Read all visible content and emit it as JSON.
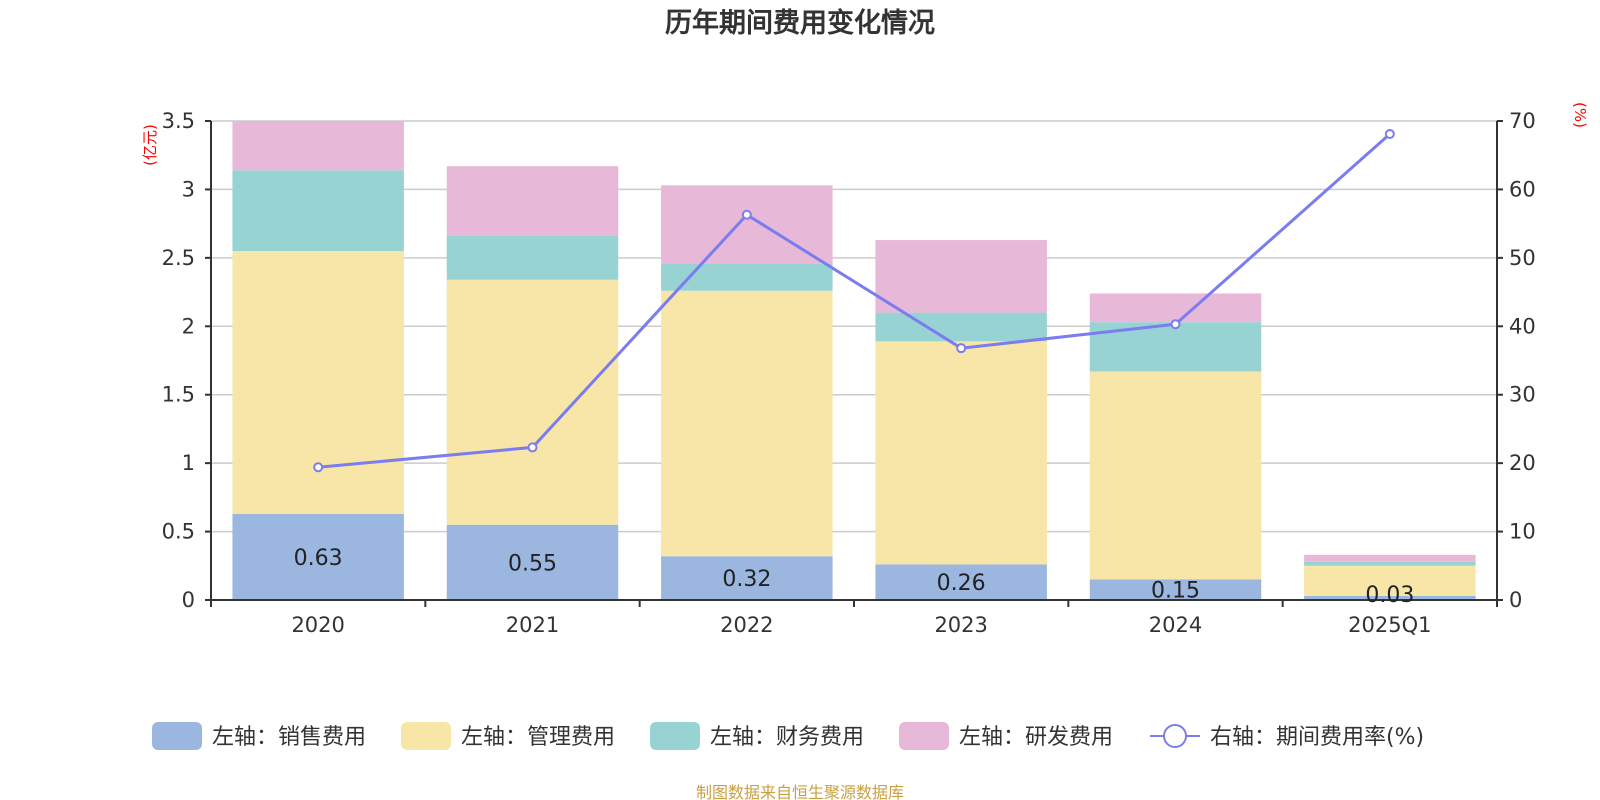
{
  "chart_data": {
    "type": "bar",
    "stacked": true,
    "title": "历年期间费用变化情况",
    "categories": [
      "2020",
      "2021",
      "2022",
      "2023",
      "2024",
      "2025Q1"
    ],
    "series": [
      {
        "name": "左轴：销售费用",
        "axis": "left",
        "type": "bar",
        "color": "#9bb7e0",
        "values": [
          0.63,
          0.55,
          0.32,
          0.26,
          0.15,
          0.03
        ],
        "show_labels": true
      },
      {
        "name": "左轴：管理费用",
        "axis": "left",
        "type": "bar",
        "color": "#f7e6a8",
        "values": [
          1.92,
          1.79,
          1.94,
          1.63,
          1.52,
          0.22
        ]
      },
      {
        "name": "左轴：财务费用",
        "axis": "left",
        "type": "bar",
        "color": "#98d3d4",
        "values": [
          0.59,
          0.32,
          0.2,
          0.21,
          0.36,
          0.03
        ]
      },
      {
        "name": "左轴：研发费用",
        "axis": "left",
        "type": "bar",
        "color": "#e7b8d8",
        "values": [
          0.36,
          0.51,
          0.57,
          0.53,
          0.21,
          0.05
        ]
      },
      {
        "name": "右轴：期间费用率(%)",
        "axis": "right",
        "type": "line",
        "color": "#7b7cef",
        "values": [
          19.4,
          22.3,
          56.3,
          36.8,
          40.3,
          68.1
        ]
      }
    ],
    "left_axis": {
      "label": "(亿元)",
      "ylim": [
        0,
        3.5
      ],
      "ticks": [
        "0",
        "0.5",
        "1",
        "1.5",
        "2",
        "2.5",
        "3",
        "3.5"
      ],
      "tick_values": [
        0,
        0.5,
        1,
        1.5,
        2,
        2.5,
        3,
        3.5
      ]
    },
    "right_axis": {
      "label": "(%)",
      "ylim": [
        0,
        70
      ],
      "ticks": [
        "0",
        "10",
        "20",
        "30",
        "40",
        "50",
        "60",
        "70"
      ],
      "tick_values": [
        0,
        10,
        20,
        30,
        40,
        50,
        60,
        70
      ]
    },
    "grid": true,
    "legend_position": "bottom",
    "source": "制图数据来自恒生聚源数据库"
  }
}
